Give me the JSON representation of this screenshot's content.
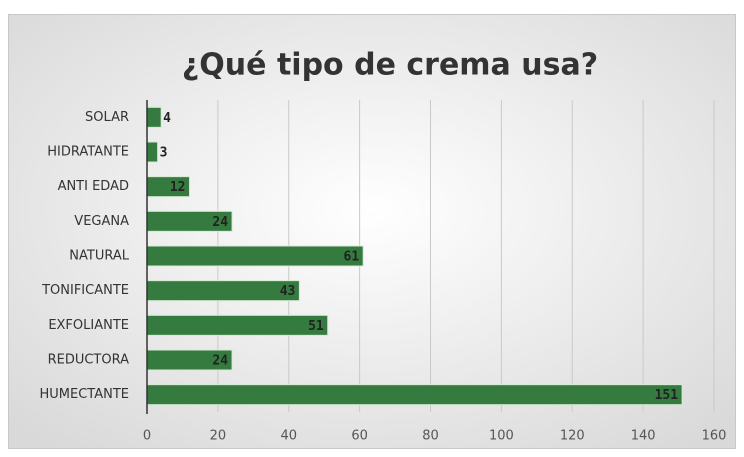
{
  "chart_data": {
    "type": "bar",
    "orientation": "horizontal",
    "title": "¿Qué tipo de crema usa?",
    "categories": [
      "SOLAR",
      "HIDRATANTE",
      "ANTI EDAD",
      "VEGANA",
      "NATURAL",
      "TONIFICANTE",
      "EXFOLIANTE",
      "REDUCTORA",
      "HUMECTANTE"
    ],
    "values": [
      4,
      3,
      12,
      24,
      61,
      43,
      51,
      24,
      151
    ],
    "color": "#357a3f",
    "xlim": [
      0,
      160
    ],
    "xticks": [
      0,
      20,
      40,
      60,
      80,
      100,
      120,
      140,
      160
    ],
    "grid": true
  }
}
